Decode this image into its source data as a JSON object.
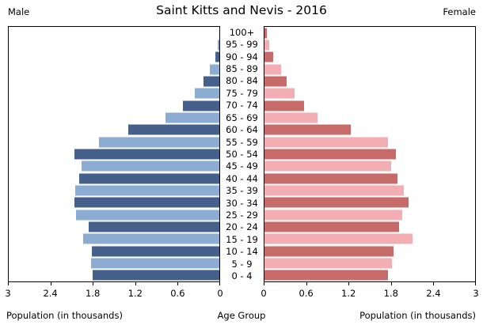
{
  "title": "Saint Kitts and Nevis - 2016",
  "left_header": "Male",
  "right_header": "Female",
  "captions": {
    "left": "Population (in thousands)",
    "center": "Age Group",
    "right": "Population (in thousands)"
  },
  "colors": {
    "male_dark": "#45608a",
    "male_light": "#8cacd3",
    "female_dark": "#c66a6a",
    "female_light": "#f2aeb2",
    "axis": "#000000",
    "background": "#ffffff"
  },
  "chart_data": {
    "type": "bar",
    "subtype": "population-pyramid",
    "title": "Saint Kitts and Nevis - 2016",
    "units": "thousands",
    "xlim": [
      0,
      3
    ],
    "grid": false,
    "age_groups_top_to_bottom": [
      "100+",
      "95 - 99",
      "90 - 94",
      "85 - 89",
      "80 - 84",
      "75 - 79",
      "70 - 74",
      "65 - 69",
      "60 - 64",
      "55 - 59",
      "50 - 54",
      "45 - 49",
      "40 - 44",
      "35 - 39",
      "30 - 34",
      "25 - 29",
      "20 - 24",
      "15 - 19",
      "10 - 14",
      "5 - 9",
      "0 - 4"
    ],
    "series": [
      {
        "name": "Male",
        "side": "left",
        "values_top_to_bottom": [
          0.0,
          0.02,
          0.06,
          0.13,
          0.23,
          0.35,
          0.52,
          0.77,
          1.3,
          1.72,
          2.06,
          1.96,
          2.0,
          2.05,
          2.06,
          2.04,
          1.86,
          1.94,
          1.82,
          1.83,
          1.8
        ]
      },
      {
        "name": "Female",
        "side": "right",
        "values_top_to_bottom": [
          0.03,
          0.07,
          0.12,
          0.24,
          0.32,
          0.43,
          0.56,
          0.75,
          1.23,
          1.76,
          1.87,
          1.8,
          1.89,
          1.98,
          2.05,
          1.96,
          1.92,
          2.11,
          1.84,
          1.82,
          1.76
        ]
      }
    ],
    "x_ticks_left": [
      "3",
      "2.4",
      "1.8",
      "1.2",
      "0.6",
      "0"
    ],
    "x_ticks_right": [
      "0",
      "0.6",
      "1.2",
      "1.8",
      "2.4",
      "3"
    ]
  }
}
